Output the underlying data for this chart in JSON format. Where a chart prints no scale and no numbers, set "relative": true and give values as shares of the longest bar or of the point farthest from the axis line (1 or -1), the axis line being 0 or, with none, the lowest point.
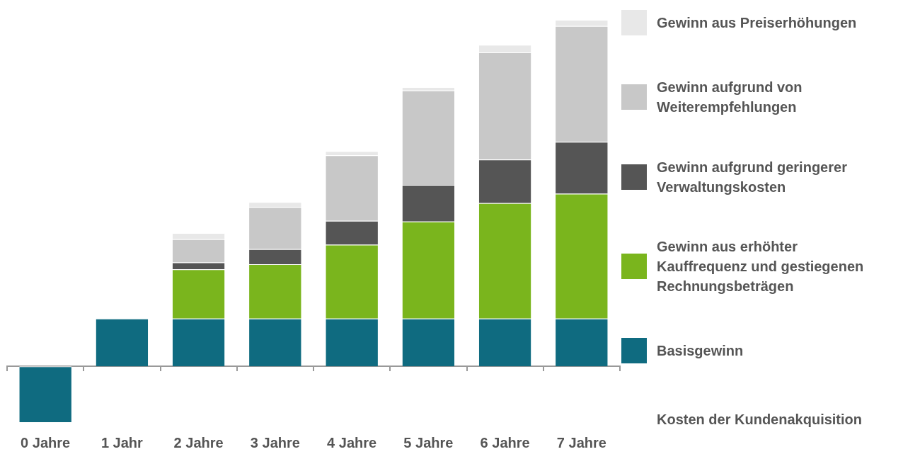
{
  "chart_data": {
    "type": "bar",
    "stacked": true,
    "relative": true,
    "legend": "right",
    "categories": [
      "0 Jahre",
      "1 Jahr",
      "2 Jahre",
      "3 Jahre",
      "4 Jahre",
      "5 Jahre",
      "6 Jahre",
      "7 Jahre"
    ],
    "series": [
      {
        "name": "Basisgewinn",
        "color": "#0f6b80",
        "values": [
          -0.161,
          0.138,
          0.138,
          0.138,
          0.138,
          0.138,
          0.138,
          0.138
        ]
      },
      {
        "name": "Gewinn aus erhöhter Kauffrequenz und gestiegenen Rechnungsbeträgen",
        "color": "#7ab51d",
        "values": [
          null,
          null,
          0.142,
          0.157,
          0.213,
          0.28,
          0.333,
          0.36
        ]
      },
      {
        "name": "Gewinn aufgrund geringerer Verwaltungskosten",
        "color": "#555555",
        "values": [
          null,
          null,
          0.02,
          0.043,
          0.069,
          0.106,
          0.126,
          0.15
        ]
      },
      {
        "name": "Gewinn aufgrund von Weiterempfehlungen",
        "color": "#c8c8c8",
        "values": [
          null,
          null,
          0.067,
          0.122,
          0.189,
          0.272,
          0.309,
          0.334
        ]
      },
      {
        "name": "Gewinn aus Preiserhöhungen",
        "color": "#e8e8e8",
        "values": [
          null,
          null,
          0.018,
          0.014,
          0.012,
          0.01,
          0.022,
          0.018
        ]
      }
    ],
    "annotations": [
      "Kosten der Kundenakquisition"
    ]
  }
}
